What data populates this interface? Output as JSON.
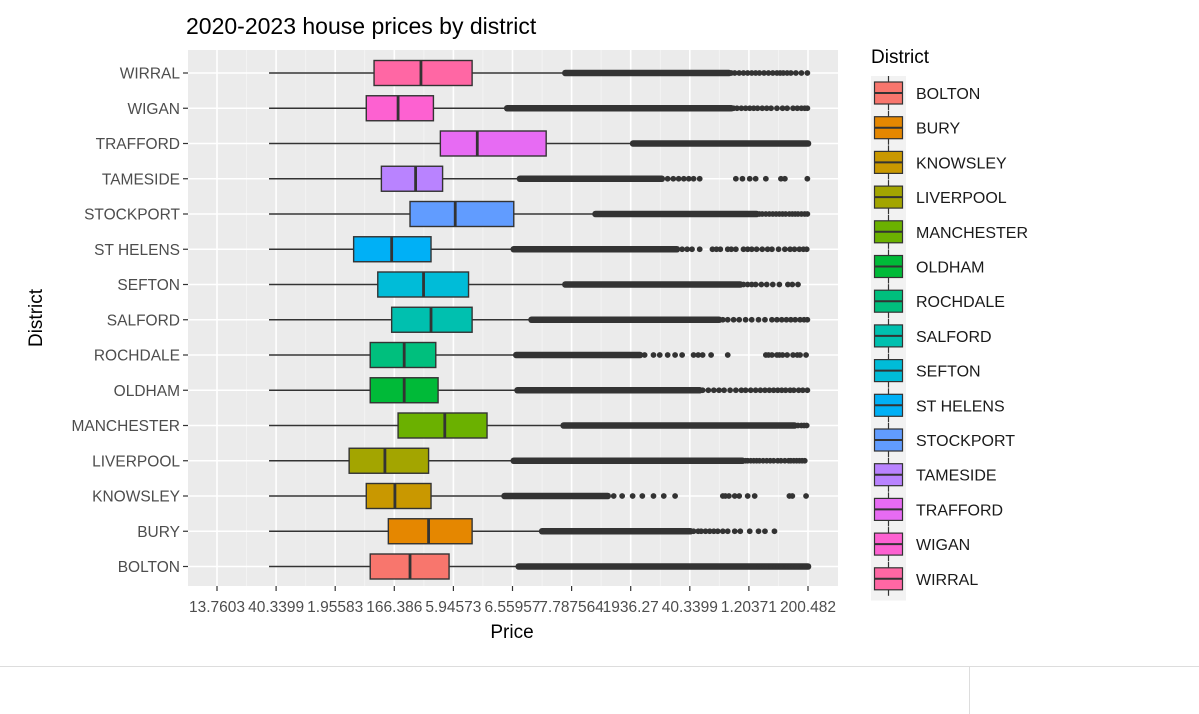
{
  "chart_data": {
    "type": "boxplot",
    "title": "2020-2023 house prices by district",
    "xlabel": "Price",
    "ylabel": "District",
    "x_scale": "log",
    "x_tick_labels": [
      "13.7603",
      "40.3399",
      "1.95583",
      "166.386",
      "5.94573",
      "6.55957",
      "7.787564",
      "1936.27",
      "40.3399",
      "1.20371",
      "200.482"
    ],
    "legend_title": "District",
    "legend_position": "right",
    "grid": true,
    "districts": [
      {
        "name": "BOLTON",
        "color": "#F8766D",
        "whisker_low": 1.5,
        "q1": 3.3,
        "median": 4.5,
        "q3": 6.1,
        "whisker_high": 10.4,
        "outlier_start": 10.5,
        "outlier_end": 100,
        "sparse_outliers": [
          68.5,
          69.5,
          71.0,
          72.5,
          75.0,
          77.5,
          79.5,
          81.0,
          85.0,
          87.0,
          89.0,
          91.5,
          95.5,
          97.5
        ]
      },
      {
        "name": "BURY",
        "color": "#E58700",
        "whisker_low": 1.5,
        "q1": 3.8,
        "median": 5.2,
        "q3": 7.3,
        "whisker_high": 12.5,
        "outlier_start": 12.6,
        "outlier_end": 40,
        "sparse_outliers": [
          41.0,
          42.5,
          43.5,
          45.0,
          46.5,
          48.0,
          49.5,
          51.5,
          53.5,
          56.5,
          59.0,
          63.5,
          68.0,
          71.5,
          77.0
        ]
      },
      {
        "name": "KNOWSLEY",
        "color": "#C99800",
        "whisker_low": 1.5,
        "q1": 3.2,
        "median": 4.0,
        "q3": 5.3,
        "whisker_high": 9.3,
        "outlier_start": 9.4,
        "outlier_end": 21,
        "sparse_outliers": [
          22.0,
          23.5,
          25.5,
          27.5,
          30.0,
          32.5,
          35.5,
          51.5,
          52.5,
          54.0,
          56.5,
          58.5,
          62.5,
          66.0,
          86.5,
          88.5,
          98.5
        ]
      },
      {
        "name": "LIVERPOOL",
        "color": "#A3A500",
        "whisker_low": 1.5,
        "q1": 2.8,
        "median": 3.7,
        "q3": 5.2,
        "whisker_high": 10.0,
        "outlier_start": 10.1,
        "outlier_end": 60,
        "sparse_outliers": [
          61.5,
          62.5,
          64.0,
          65.5,
          67.0,
          68.5,
          70.5,
          72.5,
          74.5,
          76.5,
          79.0,
          81.0,
          83.5,
          86.0,
          87.5,
          89.5,
          91.5,
          93.5,
          95.5,
          97.5
        ]
      },
      {
        "name": "MANCHESTER",
        "color": "#6BB100",
        "whisker_low": 1.5,
        "q1": 4.1,
        "median": 5.9,
        "q3": 8.2,
        "whisker_high": 14.8,
        "outlier_start": 14.9,
        "outlier_end": 90,
        "sparse_outliers": [
          90.5,
          92.5,
          95.0,
          97.0,
          99.0
        ]
      },
      {
        "name": "OLDHAM",
        "color": "#00BA38",
        "whisker_low": 1.5,
        "q1": 3.3,
        "median": 4.3,
        "q3": 5.6,
        "whisker_high": 10.3,
        "outlier_start": 10.4,
        "outlier_end": 43,
        "sparse_outliers": [
          44.0,
          46.0,
          48.0,
          50.0,
          52.0,
          54.5,
          57.0,
          59.5,
          61.5,
          64.0,
          66.5,
          69.0,
          71.5,
          74.0,
          76.5,
          79.0,
          81.5,
          84.0,
          87.0,
          89.5,
          93.0,
          96.0,
          99.5
        ]
      },
      {
        "name": "ROCHDALE",
        "color": "#00BF7D",
        "whisker_low": 1.5,
        "q1": 3.3,
        "median": 4.3,
        "q3": 5.5,
        "whisker_high": 10.2,
        "outlier_start": 10.3,
        "outlier_end": 27,
        "sparse_outliers": [
          28.0,
          30.0,
          31.5,
          33.5,
          35.5,
          37.5,
          41.0,
          42.5,
          44.0,
          47.0,
          53.5,
          72.0,
          73.5,
          75.5,
          78.5,
          80.0,
          82.0,
          85.0,
          89.0,
          92.0,
          94.0,
          98.5
        ]
      },
      {
        "name": "SALFORD",
        "color": "#00C0AF",
        "whisker_low": 1.5,
        "q1": 3.9,
        "median": 5.3,
        "q3": 7.3,
        "whisker_high": 11.5,
        "outlier_start": 11.6,
        "outlier_end": 50,
        "sparse_outliers": [
          51.5,
          53.5,
          56.0,
          58.5,
          61.5,
          64.5,
          68.0,
          71.5,
          75.5,
          78.5,
          81.5,
          84.5,
          87.5,
          90.5,
          94.0,
          97.0,
          99.5
        ]
      },
      {
        "name": "SEFTON",
        "color": "#00BCD8",
        "whisker_low": 1.5,
        "q1": 3.5,
        "median": 5.0,
        "q3": 7.1,
        "whisker_high": 15.0,
        "outlier_start": 15.1,
        "outlier_end": 59,
        "sparse_outliers": [
          60.5,
          62.5,
          64.5,
          66.5,
          69.5,
          72.5,
          76.0,
          80.0,
          85.5,
          88.5,
          92.5
        ]
      },
      {
        "name": "ST HELENS",
        "color": "#00B0F6",
        "whisker_low": 1.5,
        "q1": 2.9,
        "median": 3.9,
        "q3": 5.3,
        "whisker_high": 10.0,
        "outlier_start": 10.1,
        "outlier_end": 36,
        "sparse_outliers": [
          37.5,
          39.0,
          40.5,
          43.0,
          47.5,
          49.0,
          50.5,
          53.5,
          55.0,
          57.0,
          60.5,
          62.5,
          64.5,
          67.0,
          70.0,
          73.0,
          75.5,
          79.5,
          83.5,
          87.0,
          90.0,
          93.5,
          96.5,
          99.0
        ]
      },
      {
        "name": "STOCKPORT",
        "color": "#619CFF",
        "whisker_low": 1.5,
        "q1": 4.5,
        "median": 6.4,
        "q3": 10.1,
        "whisker_high": 19.0,
        "outlier_start": 19.1,
        "outlier_end": 67,
        "sparse_outliers": [
          68.5,
          70.0,
          72.0,
          74.0,
          76.0,
          78.0,
          80.0,
          82.0,
          84.0,
          86.5,
          88.5,
          90.5,
          92.5,
          95.0,
          97.5,
          99.5
        ]
      },
      {
        "name": "TAMESIDE",
        "color": "#B983FF",
        "whisker_low": 1.5,
        "q1": 3.6,
        "median": 4.7,
        "q3": 5.8,
        "whisker_high": 10.5,
        "outlier_start": 10.6,
        "outlier_end": 32,
        "sparse_outliers": [
          33.5,
          35.0,
          36.5,
          38.0,
          39.5,
          41.0,
          43.0,
          57.0,
          60.0,
          63.5,
          66.5,
          72.0,
          81.0,
          83.5,
          99.5
        ]
      },
      {
        "name": "TRAFFORD",
        "color": "#E76BF3",
        "whisker_low": 1.5,
        "q1": 5.7,
        "median": 7.6,
        "q3": 13.0,
        "whisker_high": 25.5,
        "outlier_start": 25.6,
        "outlier_end": 100,
        "sparse_outliers": []
      },
      {
        "name": "WIGAN",
        "color": "#FD61D1",
        "whisker_low": 1.5,
        "q1": 3.2,
        "median": 4.1,
        "q3": 5.4,
        "whisker_high": 9.5,
        "outlier_start": 9.6,
        "outlier_end": 55,
        "sparse_outliers": [
          56.0,
          57.5,
          59.5,
          61.5,
          63.5,
          65.5,
          67.5,
          70.0,
          72.5,
          75.0,
          78.5,
          82.0,
          85.0,
          89.0,
          92.0,
          95.0,
          97.5,
          99.5
        ]
      },
      {
        "name": "WIRRAL",
        "color": "#FF67A4",
        "whisker_low": 1.5,
        "q1": 3.4,
        "median": 4.9,
        "q3": 7.3,
        "whisker_high": 15.0,
        "outlier_start": 15.1,
        "outlier_end": 54,
        "sparse_outliers": [
          55.0,
          56.5,
          58.5,
          60.5,
          62.5,
          64.5,
          66.5,
          68.5,
          71.0,
          73.5,
          76.0,
          78.5,
          80.5,
          82.5,
          85.0,
          87.5,
          91.0,
          95.0,
          99.5
        ]
      }
    ]
  }
}
